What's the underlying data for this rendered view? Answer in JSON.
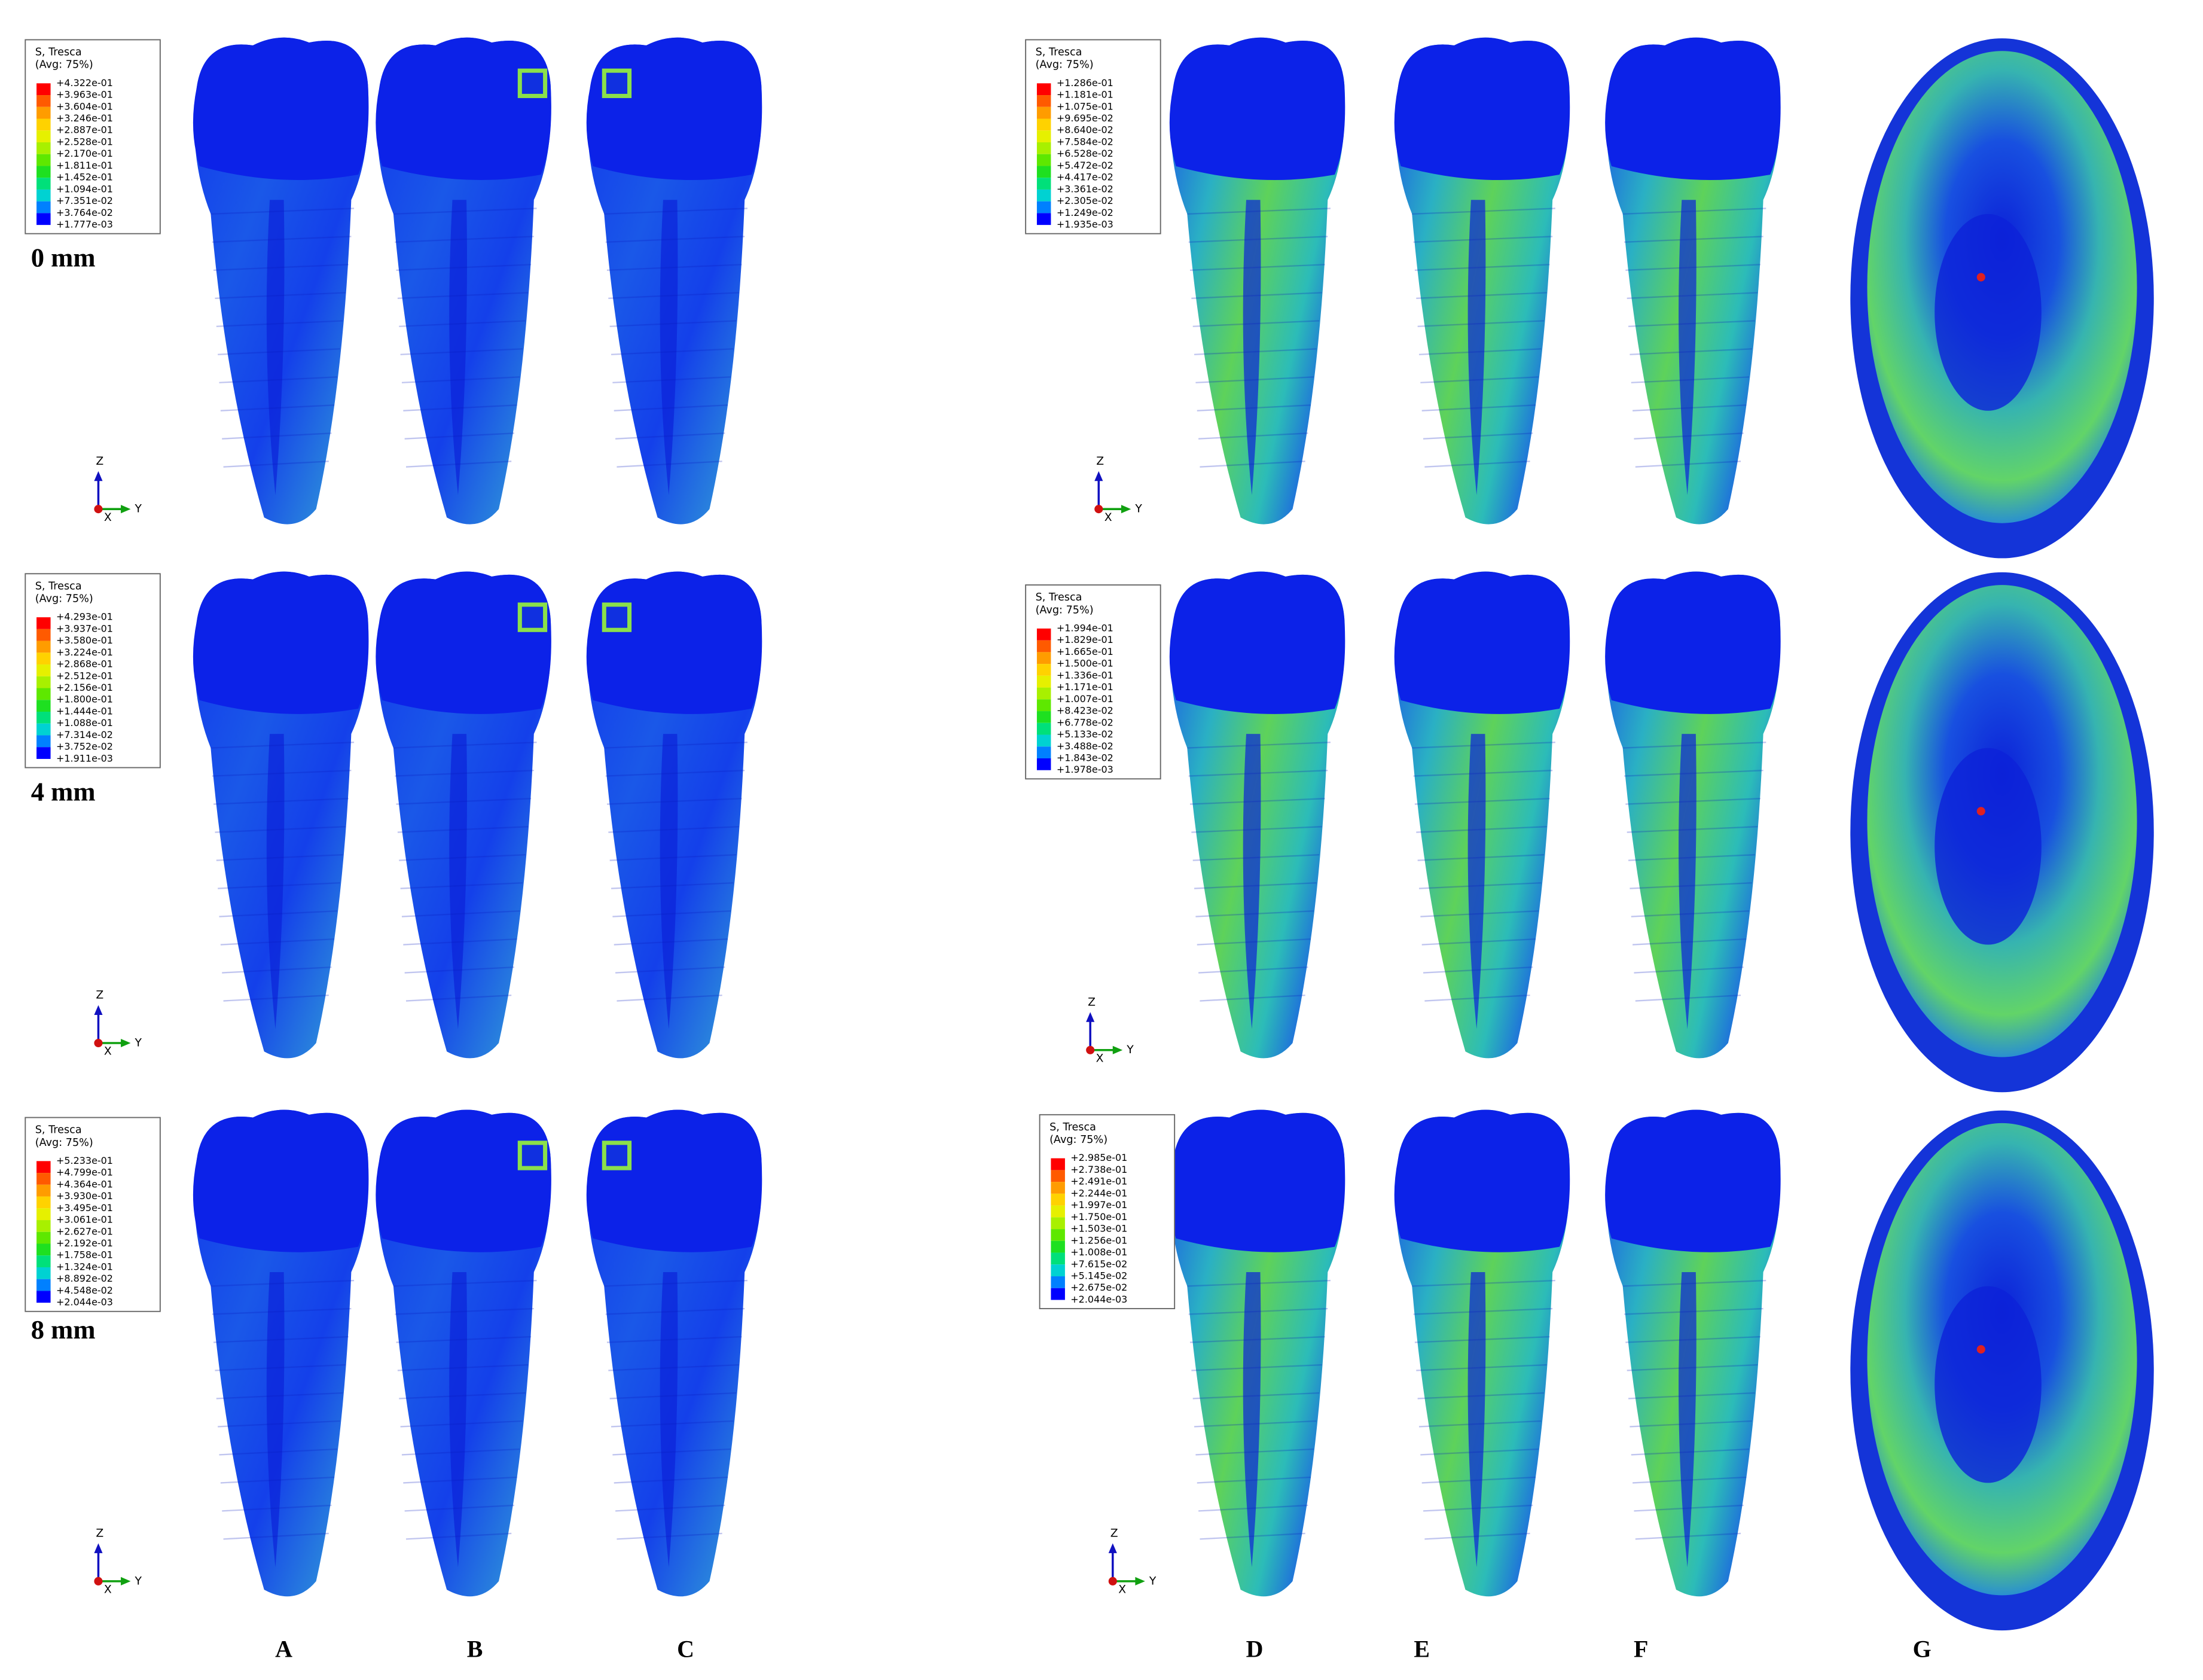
{
  "legends": [
    {
      "title": "S, Tresca",
      "subtitle": "(Avg: 75%)",
      "values": [
        "+4.322e-01",
        "+3.963e-01",
        "+3.604e-01",
        "+3.246e-01",
        "+2.887e-01",
        "+2.528e-01",
        "+2.170e-01",
        "+1.811e-01",
        "+1.452e-01",
        "+1.094e-01",
        "+7.351e-02",
        "+3.764e-02",
        "+1.777e-03"
      ]
    },
    {
      "title": "S, Tresca",
      "subtitle": "(Avg: 75%)",
      "values": [
        "+4.293e-01",
        "+3.937e-01",
        "+3.580e-01",
        "+3.224e-01",
        "+2.868e-01",
        "+2.512e-01",
        "+2.156e-01",
        "+1.800e-01",
        "+1.444e-01",
        "+1.088e-01",
        "+7.314e-02",
        "+3.752e-02",
        "+1.911e-03"
      ]
    },
    {
      "title": "S, Tresca",
      "subtitle": "(Avg: 75%)",
      "values": [
        "+5.233e-01",
        "+4.799e-01",
        "+4.364e-01",
        "+3.930e-01",
        "+3.495e-01",
        "+3.061e-01",
        "+2.627e-01",
        "+2.192e-01",
        "+1.758e-01",
        "+1.324e-01",
        "+8.892e-02",
        "+4.548e-02",
        "+2.044e-03"
      ]
    },
    {
      "title": "S, Tresca",
      "subtitle": "(Avg: 75%)",
      "values": [
        "+1.286e-01",
        "+1.181e-01",
        "+1.075e-01",
        "+9.695e-02",
        "+8.640e-02",
        "+7.584e-02",
        "+6.528e-02",
        "+5.472e-02",
        "+4.417e-02",
        "+3.361e-02",
        "+2.305e-02",
        "+1.249e-02",
        "+1.935e-03"
      ]
    },
    {
      "title": "S, Tresca",
      "subtitle": "(Avg: 75%)",
      "values": [
        "+1.994e-01",
        "+1.829e-01",
        "+1.665e-01",
        "+1.500e-01",
        "+1.336e-01",
        "+1.171e-01",
        "+1.007e-01",
        "+8.423e-02",
        "+6.778e-02",
        "+5.133e-02",
        "+3.488e-02",
        "+1.843e-02",
        "+1.978e-03"
      ]
    },
    {
      "title": "S, Tresca",
      "subtitle": "(Avg: 75%)",
      "values": [
        "+2.985e-01",
        "+2.738e-01",
        "+2.491e-01",
        "+2.244e-01",
        "+1.997e-01",
        "+1.750e-01",
        "+1.503e-01",
        "+1.256e-01",
        "+1.008e-01",
        "+7.615e-02",
        "+5.145e-02",
        "+2.675e-02",
        "+2.044e-03"
      ]
    }
  ],
  "row_labels": [
    "0 mm",
    "4 mm",
    "8 mm"
  ],
  "column_labels": [
    "A",
    "B",
    "C",
    "D",
    "E",
    "F",
    "G"
  ],
  "axis_labels": {
    "z": "Z",
    "y": "Y",
    "x": "X"
  }
}
